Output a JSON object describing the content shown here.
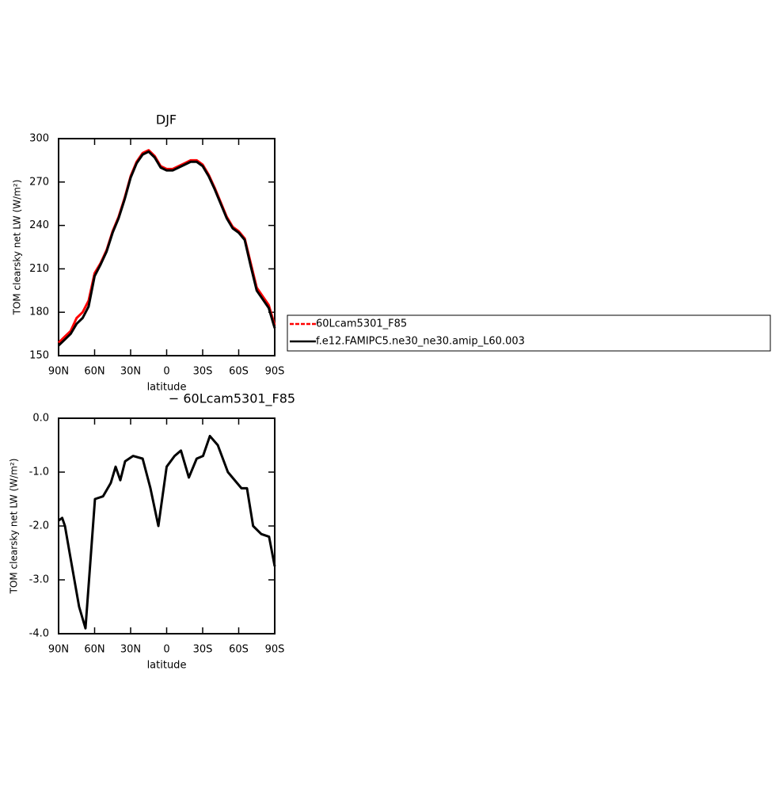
{
  "chart_data": [
    {
      "type": "line",
      "title": "DJF",
      "xlabel": "latitude",
      "ylabel": "TOM clearsky net LW (W/m²)",
      "x": [
        90,
        85,
        80,
        75,
        70,
        65,
        60,
        55,
        50,
        45,
        40,
        35,
        30,
        25,
        20,
        15,
        10,
        5,
        0,
        -5,
        -10,
        -15,
        -20,
        -25,
        -30,
        -35,
        -40,
        -45,
        -50,
        -55,
        -60,
        -65,
        -70,
        -75,
        -80,
        -85,
        -90
      ],
      "series": [
        {
          "name": "60Lcam5301_F85",
          "color": "#ff0000",
          "values": [
            159,
            163,
            167,
            176,
            180,
            188,
            207,
            214,
            223,
            236,
            246,
            259,
            274,
            284,
            290,
            292,
            288,
            281,
            279,
            279,
            281,
            283,
            285,
            285,
            282,
            275,
            266,
            256,
            246,
            239,
            236,
            231,
            214,
            197,
            191,
            185,
            171
          ]
        },
        {
          "name": "f.e12.FAMIPC5.ne30_ne30.amip_L60.003",
          "color": "#000000",
          "values": [
            157,
            161,
            165,
            172,
            176,
            184,
            205,
            213,
            222,
            235,
            245,
            258,
            273,
            283,
            289,
            291,
            287,
            280,
            278,
            278,
            280,
            282,
            284,
            284,
            281,
            274,
            265,
            255,
            245,
            238,
            235,
            230,
            212,
            195,
            189,
            183,
            169
          ]
        }
      ],
      "xlim": [
        90,
        -90
      ],
      "xticks": [
        {
          "value": 90,
          "label": "90N"
        },
        {
          "value": 60,
          "label": "60N"
        },
        {
          "value": 30,
          "label": "30N"
        },
        {
          "value": 0,
          "label": "0"
        },
        {
          "value": -30,
          "label": "30S"
        },
        {
          "value": -60,
          "label": "60S"
        },
        {
          "value": -90,
          "label": "90S"
        }
      ],
      "ylim": [
        150,
        300
      ],
      "yticks": [
        150,
        180,
        210,
        240,
        270,
        300
      ],
      "legend": "right"
    },
    {
      "type": "line",
      "title": "− 60Lcam5301_F85",
      "xlabel": "latitude",
      "ylabel": "TOM clearsky net LW (W/m²)",
      "x": [
        90,
        87,
        84.7,
        80.8,
        72.9,
        67.6,
        59.7,
        53,
        46.5,
        42.5,
        38.6,
        34.6,
        28,
        20,
        13.5,
        6.9,
        0,
        -6.6,
        -11.9,
        -18.5,
        -25,
        -30.3,
        -36,
        -42.6,
        -51,
        -62.3,
        -66.9,
        -72,
        -78.8,
        -85.3,
        -90
      ],
      "series": [
        {
          "color": "#000000",
          "values": [
            -1.9,
            -1.85,
            -2.0,
            -2.5,
            -3.5,
            -3.9,
            -1.5,
            -1.45,
            -1.2,
            -0.9,
            -1.15,
            -0.8,
            -0.7,
            -0.75,
            -1.3,
            -2.0,
            -0.9,
            -0.7,
            -0.6,
            -1.1,
            -0.75,
            -0.7,
            -0.33,
            -0.5,
            -1.0,
            -1.3,
            -1.3,
            -2.0,
            -2.15,
            -2.2,
            -2.75
          ]
        }
      ],
      "xlim": [
        90,
        -90
      ],
      "xticks": [
        {
          "value": 90,
          "label": "90N"
        },
        {
          "value": 60,
          "label": "60N"
        },
        {
          "value": 30,
          "label": "30N"
        },
        {
          "value": 0,
          "label": "0"
        },
        {
          "value": -30,
          "label": "30S"
        },
        {
          "value": -60,
          "label": "60S"
        },
        {
          "value": -90,
          "label": "90S"
        }
      ],
      "ylim": [
        -4,
        0
      ],
      "yticks": [
        {
          "value": -4,
          "label": "-4.0"
        },
        {
          "value": -3,
          "label": "-3.0"
        },
        {
          "value": -2,
          "label": "-2.0"
        },
        {
          "value": -1,
          "label": "-1.0"
        },
        {
          "value": 0,
          "label": "0.0"
        }
      ]
    }
  ]
}
